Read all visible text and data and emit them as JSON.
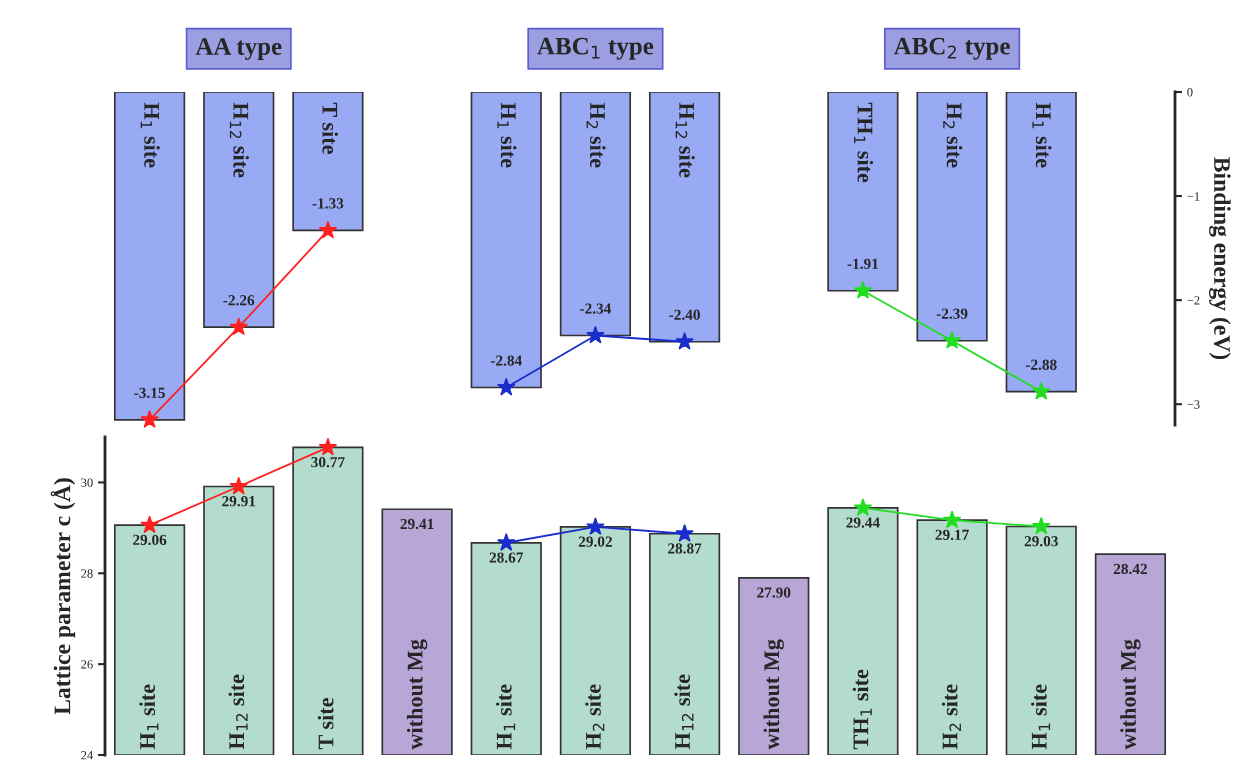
{
  "chart_data": [
    {
      "type": "bar",
      "y2label": "Binding energy (eV)",
      "y2lim": [
        -3.2,
        0
      ],
      "y2ticks": [
        {
          "value": 0,
          "label": "0"
        },
        {
          "value": -1,
          "label": "−1"
        },
        {
          "value": -2,
          "label": "−2"
        },
        {
          "value": -3,
          "label": "−3"
        }
      ],
      "tick_labels": "y2",
      "annotations": [
        "AA type",
        "ABC$_{1}$ type",
        "ABC$_{2}$ type"
      ],
      "categories": [
        "H$_{1}$ site",
        "H$_{12}$ site",
        "T site",
        null,
        "H$_{1}$ site",
        "H$_{2}$ site",
        "H$_{12}$ site",
        null,
        "TH$_{1}$ site",
        "H$_{2}$ site",
        "H$_{1}$ site",
        null
      ],
      "series": [
        {
          "type": "bar",
          "axis": "y2",
          "colors": [
            "#98aaf4",
            "#98aaf4",
            "#98aaf4",
            null,
            "#98aaf4",
            "#98aaf4",
            "#98aaf4",
            null,
            "#98aaf4",
            "#98aaf4",
            "#98aaf4",
            null
          ],
          "values": [
            -3.15,
            -2.26,
            -1.33,
            null,
            -2.84,
            -2.34,
            -2.4,
            null,
            -1.91,
            -2.39,
            -2.88,
            null
          ],
          "value_labels": [
            "-3.15",
            "-2.26",
            "-1.33",
            null,
            "-2.84",
            "-2.34",
            "-2.40",
            null,
            "-1.91",
            "-2.39",
            "-2.88",
            null
          ]
        },
        {
          "type": "line",
          "axis": "y2",
          "color": "#ff2020",
          "marker": "star",
          "line_style": "solid",
          "values": [
            -3.15,
            -2.26,
            -1.33,
            null,
            null,
            null,
            null,
            null,
            null,
            null,
            null,
            null
          ]
        },
        {
          "type": "line",
          "axis": "y2",
          "color": "#1a2ccc",
          "marker": "star",
          "line_style": "solid",
          "values": [
            null,
            null,
            null,
            null,
            -2.84,
            -2.34,
            -2.4,
            null,
            null,
            null,
            null,
            null
          ]
        },
        {
          "type": "line",
          "axis": "y2",
          "color": "#22dd22",
          "marker": "star",
          "line_style": "solid",
          "values": [
            null,
            null,
            null,
            null,
            null,
            null,
            null,
            null,
            -1.91,
            -2.39,
            -2.88,
            null
          ]
        }
      ]
    },
    {
      "type": "bar",
      "ylabel": "Lattice parameter c (Å)",
      "ylim": [
        24,
        31
      ],
      "yticks": [
        24,
        26,
        28,
        30
      ],
      "tick_labels": "y",
      "categories": [
        "H$_{1}$ site",
        "H$_{12}$ site",
        "T site",
        "without Mg",
        "H$_{1}$ site",
        "H$_{2}$ site",
        "H$_{12}$ site",
        "without Mg",
        "TH$_{1}$ site",
        "H$_{2}$ site",
        "H$_{1}$ site",
        "without Mg"
      ],
      "series": [
        {
          "type": "bar",
          "colors": [
            "#b4dccc",
            "#b4dccc",
            "#b4dccc",
            "#b8a6d6",
            "#b4dccc",
            "#b4dccc",
            "#b4dccc",
            "#b8a6d6",
            "#b4dccc",
            "#b4dccc",
            "#b4dccc",
            "#b8a6d6"
          ],
          "values": [
            29.06,
            29.91,
            30.77,
            29.41,
            28.67,
            29.02,
            28.87,
            27.9,
            29.44,
            29.17,
            29.03,
            28.42
          ],
          "value_labels": [
            "29.06",
            "29.91",
            "30.77",
            "29.41",
            "28.67",
            "29.02",
            "28.87",
            "27.90",
            "29.44",
            "29.17",
            "29.03",
            "28.42"
          ]
        },
        {
          "type": "line",
          "color": "#ff2020",
          "marker": "star",
          "line_style": "solid",
          "values": [
            29.06,
            29.91,
            30.77,
            null,
            null,
            null,
            null,
            null,
            null,
            null,
            null,
            null
          ]
        },
        {
          "type": "line",
          "color": "#1a2ccc",
          "marker": "star",
          "line_style": "solid",
          "values": [
            null,
            null,
            null,
            null,
            28.67,
            29.02,
            28.87,
            null,
            null,
            null,
            null,
            null
          ]
        },
        {
          "type": "line",
          "color": "#22dd22",
          "marker": "star",
          "line_style": "solid",
          "values": [
            null,
            null,
            null,
            null,
            null,
            null,
            null,
            null,
            29.44,
            29.17,
            29.03,
            null
          ]
        }
      ]
    }
  ]
}
